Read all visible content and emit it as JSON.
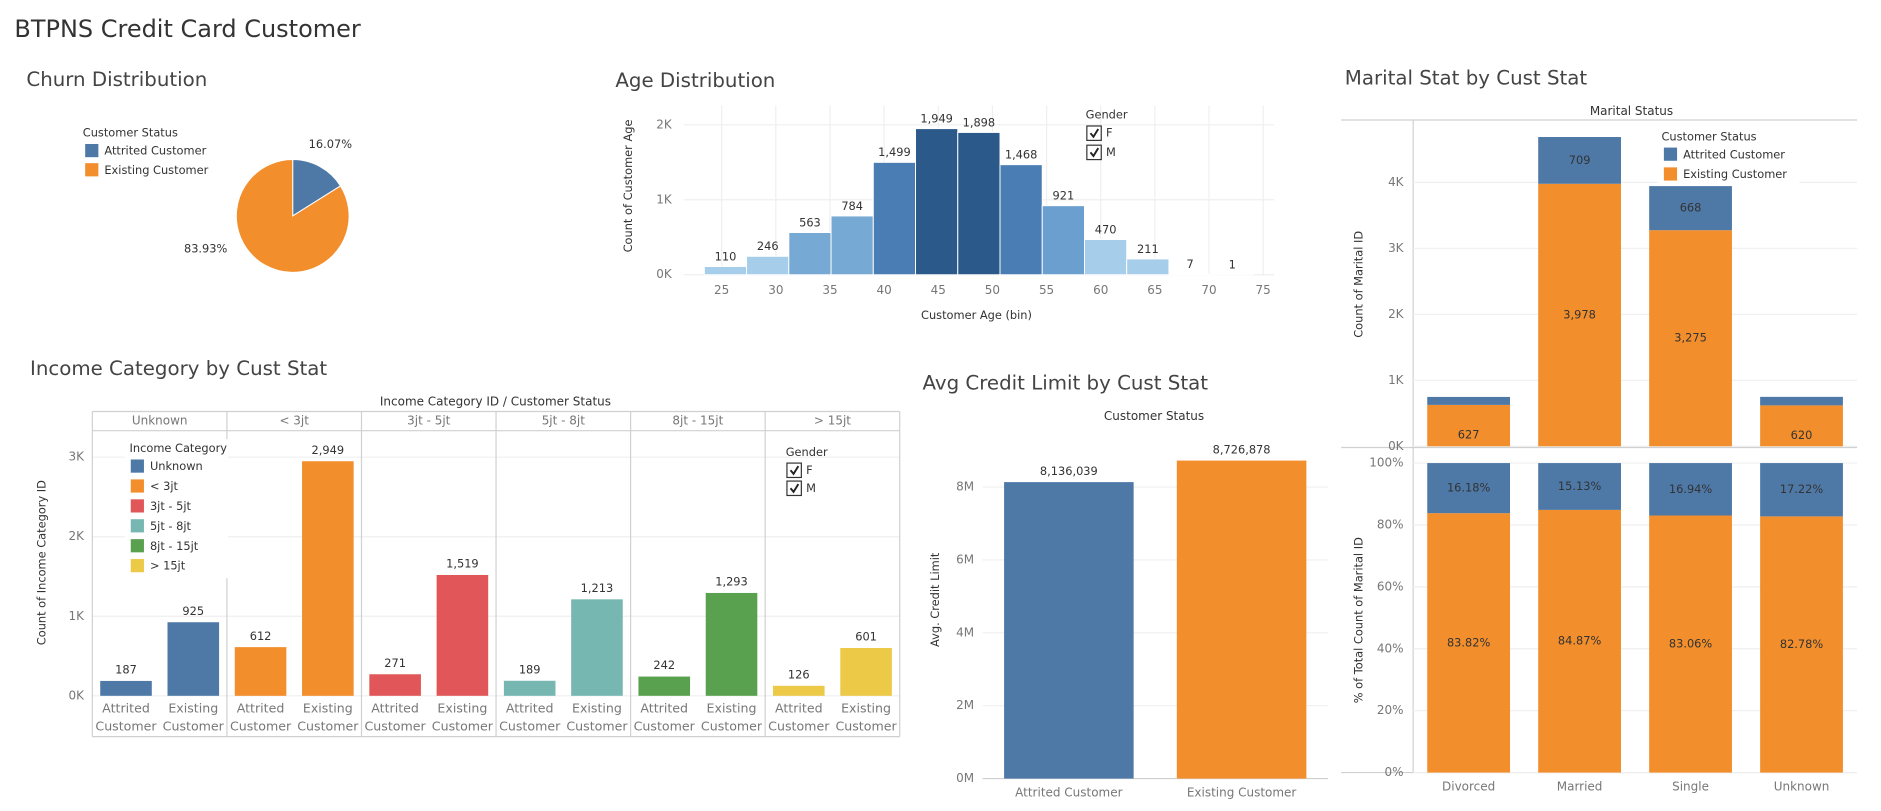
{
  "title": "BTPNS Credit Card Customer",
  "chart_data": [
    {
      "type": "pie",
      "title": "Churn Distribution",
      "legend_title": "Customer Status",
      "categories": [
        "Attrited Customer",
        "Existing Customer"
      ],
      "values": [
        16.07,
        83.93
      ],
      "value_labels": [
        "16.07%",
        "83.93%"
      ],
      "colors": [
        "#4e79a7",
        "#f28e2b"
      ]
    },
    {
      "type": "histogram",
      "title": "Age Distribution",
      "x_label": "Customer Age (bin)",
      "y_label": "Count of Customer Age",
      "bins": [
        23.4,
        27.3,
        31.2,
        35.1,
        39,
        42.9,
        46.8,
        50.7,
        54.6,
        58.5,
        62.4,
        66.3,
        70.2,
        74.1
      ],
      "values": [
        110,
        246,
        563,
        784,
        1499,
        1949,
        1898,
        1468,
        921,
        470,
        211,
        7,
        1
      ],
      "value_labels": [
        "110",
        "246",
        "563",
        "784",
        "1,499",
        "1,949",
        "1,898",
        "1,468",
        "921",
        "470",
        "211",
        "7",
        "1"
      ],
      "colors": [
        "#a6cdea",
        "#a6cdea",
        "#76a9d3",
        "#76a9d3",
        "#4a7db3",
        "#2b5a8a",
        "#2b5a8a",
        "#4a7db3",
        "#6a9fcf",
        "#a6cdea",
        "#a6cdea",
        "#cfe2f2",
        "#cfe2f2"
      ],
      "xlim": [
        21.5,
        76
      ],
      "xticks": [
        25,
        30,
        35,
        40,
        45,
        50,
        55,
        60,
        65,
        70,
        75
      ],
      "ylim": [
        0,
        2256
      ],
      "yticks": [
        {
          "value": 0,
          "label": "0K"
        },
        {
          "value": 1000,
          "label": "1K"
        },
        {
          "value": 2000,
          "label": "2K"
        }
      ],
      "grid": true,
      "legend_title": "Gender",
      "legend_items": [
        "F",
        "M"
      ]
    },
    {
      "type": "stacked_bar",
      "title": "Marital Stat by Cust Stat",
      "header": "Marital Status",
      "y_label": "Count of Marital ID",
      "legend_title": "Customer Status",
      "categories": [
        "Divorced",
        "Married",
        "Single",
        "Unknown"
      ],
      "series": [
        {
          "name": "Attrited Customer",
          "color": "#4e79a7",
          "values": [
            121,
            709,
            668,
            129
          ],
          "value_labels": [
            null,
            "709",
            "668",
            null
          ]
        },
        {
          "name": "Existing Customer",
          "color": "#f28e2b",
          "values": [
            627,
            3978,
            3275,
            620
          ],
          "value_labels": [
            "627",
            "3,978",
            "3,275",
            "620"
          ]
        }
      ],
      "ylim": [
        0,
        4945
      ],
      "yticks": [
        {
          "value": 0,
          "label": "0K"
        },
        {
          "value": 1000,
          "label": "1K"
        },
        {
          "value": 2000,
          "label": "2K"
        },
        {
          "value": 3000,
          "label": "3K"
        },
        {
          "value": 4000,
          "label": "4K"
        }
      ],
      "grid": true
    },
    {
      "type": "stacked_bar",
      "y_label": "% of Total Count of Marital ID",
      "series": [
        {
          "color": "#4e79a7",
          "values": [
            16.18,
            15.13,
            16.94,
            17.22
          ],
          "value_labels": [
            "16.18%",
            "15.13%",
            "16.94%",
            "17.22%"
          ]
        },
        {
          "color": "#f28e2b",
          "values": [
            83.82,
            84.87,
            83.06,
            82.78
          ],
          "value_labels": [
            "83.82%",
            "84.87%",
            "83.06%",
            "82.78%"
          ]
        }
      ],
      "ylim": [
        0,
        100
      ],
      "yticks": [
        {
          "value": 0,
          "label": "0%"
        },
        {
          "value": 20,
          "label": "20%"
        },
        {
          "value": 40,
          "label": "40%"
        },
        {
          "value": 60,
          "label": "60%"
        },
        {
          "value": 80,
          "label": "80%"
        },
        {
          "value": 100,
          "label": "100%"
        }
      ],
      "grid": true
    },
    {
      "type": "grouped_bar",
      "title": "Income Category by Cust Stat",
      "header": "Income Category ID  /  Customer Status",
      "y_label": "Count of Income Category ID",
      "legend_title": "Income Category",
      "subcategories": [
        "Attrited Customer",
        "Existing Customer"
      ],
      "series": [
        {
          "name": "Unknown",
          "color": "#4e79a7",
          "values": [
            187,
            925
          ]
        },
        {
          "name": "< 3jt",
          "color": "#f28e2b",
          "values": [
            612,
            2949
          ],
          "value_labels": [
            "612",
            "2,949"
          ]
        },
        {
          "name": "3jt - 5jt",
          "color": "#e15759",
          "values": [
            271,
            1519
          ],
          "value_labels": [
            "271",
            "1,519"
          ]
        },
        {
          "name": "5jt - 8jt",
          "color": "#76b7b2",
          "values": [
            189,
            1213
          ],
          "value_labels": [
            "189",
            "1,213"
          ]
        },
        {
          "name": "8jt - 15jt",
          "color": "#59a14f",
          "values": [
            242,
            1293
          ],
          "value_labels": [
            "242",
            "1,293"
          ]
        },
        {
          "name": "> 15jt",
          "color": "#edc948",
          "values": [
            126,
            601
          ]
        }
      ],
      "ylim": [
        0,
        3318
      ],
      "yticks": [
        {
          "value": 0,
          "label": "0K"
        },
        {
          "value": 1000,
          "label": "1K"
        },
        {
          "value": 2000,
          "label": "2K"
        },
        {
          "value": 3000,
          "label": "3K"
        }
      ],
      "grid": true,
      "gender_legend_title": "Gender",
      "gender_legend_items": [
        "F",
        "M"
      ]
    },
    {
      "type": "bar",
      "title": "Avg Credit Limit by Cust Stat",
      "header": "Customer Status",
      "y_label": "Avg. Credit Limit",
      "categories": [
        "Attrited Customer",
        "Existing Customer"
      ],
      "values": [
        8136039,
        8726878
      ],
      "value_labels": [
        "8,136,039",
        "8,726,878"
      ],
      "colors": [
        "#4e79a7",
        "#f28e2b"
      ],
      "ylim": [
        0,
        9580000
      ],
      "yticks": [
        {
          "value": 0,
          "label": "0M"
        },
        {
          "value": 2000000,
          "label": "2M"
        },
        {
          "value": 4000000,
          "label": "4M"
        },
        {
          "value": 6000000,
          "label": "6M"
        },
        {
          "value": 8000000,
          "label": "8M"
        }
      ],
      "grid": true
    }
  ]
}
